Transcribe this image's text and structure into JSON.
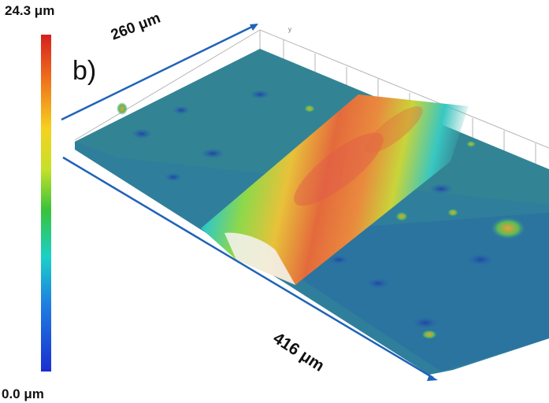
{
  "colorbar": {
    "max_label": "24.3 μm",
    "min_label": "0.0 μm",
    "stops": [
      "#d61f1f",
      "#f0761c",
      "#f4d21f",
      "#c6e02a",
      "#39c33a",
      "#1bd0c8",
      "#1e7fe0",
      "#1a2fd0"
    ]
  },
  "panel_label": "b)",
  "dimensions": {
    "width": "260 μm",
    "length": "416 μm"
  },
  "axis": {
    "y_label": "y"
  },
  "colors": {
    "arrow": "#1f63b8",
    "background_surface": "#2d7a98",
    "track_peak": "#e0584a",
    "track_mid": "#f0c040"
  }
}
